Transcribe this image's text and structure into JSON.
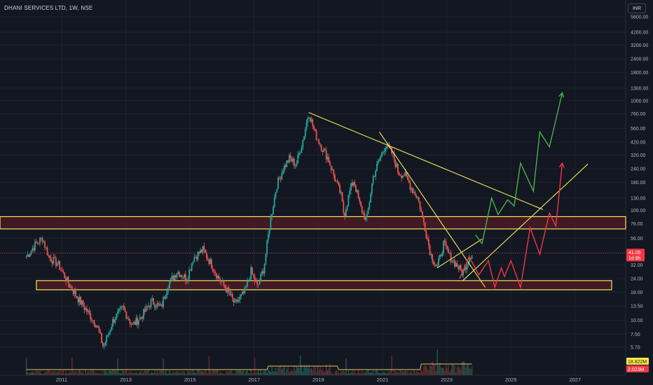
{
  "header": {
    "title": "DHANI SERVICES LTD, 1W, NSE",
    "currency": "INR"
  },
  "colors": {
    "up": "#26a69a",
    "down": "#ef5350",
    "line": "#f2e95a",
    "zone_fill": "#4a1a26",
    "green_path": "#4caf50",
    "red_path": "#f23645",
    "bg": "#131722"
  },
  "chart_data": {
    "type": "candlestick",
    "symbol": "DHANI SERVICES LTD",
    "interval": "1W",
    "exchange": "NSE",
    "scale": "log",
    "y_ticks": [
      5800,
      4200,
      3200,
      2400,
      1800,
      1300,
      1000,
      760,
      560,
      420,
      320,
      240,
      180,
      130,
      100,
      76,
      56,
      41.05,
      32,
      24,
      18,
      13.5,
      10,
      7.5,
      5.7
    ],
    "y_tick_labels": [
      "5800.00",
      "4200.00",
      "3200.00",
      "2400.00",
      "1800.00",
      "1300.00",
      "1000.00",
      "760.00",
      "560.00",
      "420.00",
      "320.00",
      "240.00",
      "180.00",
      "130.00",
      "100.00",
      "76.00",
      "56.00",
      "",
      "32.00",
      "24.00",
      "18.00",
      "13.50",
      "10.00",
      "7.50",
      "5.70"
    ],
    "x_ticks": [
      "2011",
      "2013",
      "2015",
      "2017",
      "2019",
      "2021",
      "2023",
      "2025",
      "2027"
    ],
    "last_price": {
      "value": "41.05",
      "countdown": "1d 8h"
    },
    "volume": {
      "value_1": "18.822M",
      "value_2": "2.023M"
    },
    "price_path": [
      [
        2009.9,
        38
      ],
      [
        2010.2,
        50
      ],
      [
        2010.4,
        56
      ],
      [
        2010.6,
        38
      ],
      [
        2010.9,
        32
      ],
      [
        2011.2,
        22
      ],
      [
        2011.5,
        16
      ],
      [
        2011.8,
        12
      ],
      [
        2012.1,
        9
      ],
      [
        2012.3,
        5.7
      ],
      [
        2012.6,
        10
      ],
      [
        2012.9,
        13
      ],
      [
        2013.2,
        9
      ],
      [
        2013.5,
        11
      ],
      [
        2013.8,
        15
      ],
      [
        2014.1,
        13
      ],
      [
        2014.3,
        21
      ],
      [
        2014.6,
        28
      ],
      [
        2014.9,
        24
      ],
      [
        2015.1,
        37
      ],
      [
        2015.4,
        44
      ],
      [
        2015.6,
        35
      ],
      [
        2015.9,
        24
      ],
      [
        2016.2,
        18
      ],
      [
        2016.4,
        14
      ],
      [
        2016.7,
        18
      ],
      [
        2016.9,
        28
      ],
      [
        2017.1,
        20
      ],
      [
        2017.3,
        30
      ],
      [
        2017.5,
        80
      ],
      [
        2017.7,
        170
      ],
      [
        2017.9,
        240
      ],
      [
        2018.1,
        300
      ],
      [
        2018.3,
        260
      ],
      [
        2018.5,
        420
      ],
      [
        2018.7,
        780
      ],
      [
        2018.9,
        500
      ],
      [
        2019.1,
        380
      ],
      [
        2019.3,
        300
      ],
      [
        2019.5,
        200
      ],
      [
        2019.7,
        140
      ],
      [
        2019.8,
        90
      ],
      [
        2020.0,
        160
      ],
      [
        2020.1,
        190
      ],
      [
        2020.3,
        110
      ],
      [
        2020.5,
        80
      ],
      [
        2020.7,
        200
      ],
      [
        2020.9,
        290
      ],
      [
        2021.1,
        400
      ],
      [
        2021.3,
        330
      ],
      [
        2021.5,
        220
      ],
      [
        2021.7,
        210
      ],
      [
        2021.9,
        160
      ],
      [
        2022.1,
        130
      ],
      [
        2022.3,
        75
      ],
      [
        2022.5,
        40
      ],
      [
        2022.7,
        30
      ],
      [
        2022.9,
        50
      ],
      [
        2023.1,
        38
      ],
      [
        2023.3,
        32
      ],
      [
        2023.5,
        27
      ],
      [
        2023.7,
        38
      ],
      [
        2023.8,
        41.05
      ]
    ],
    "zones": [
      {
        "y_top": 88,
        "y_bottom": 68
      },
      {
        "y_top": 23,
        "y_bottom": 19
      }
    ],
    "trendlines": [
      {
        "x1": 2018.7,
        "y1": 780,
        "x2": 2026.0,
        "y2": 102
      },
      {
        "x1": 2020.9,
        "y1": 520,
        "x2": 2024.2,
        "y2": 20
      },
      {
        "x1": 2022.7,
        "y1": 30,
        "x2": 2024.1,
        "y2": 55
      },
      {
        "x1": 2023.5,
        "y1": 23,
        "x2": 2027.4,
        "y2": 265
      }
    ],
    "green_projection": [
      [
        2023.9,
        60
      ],
      [
        2024.1,
        50
      ],
      [
        2024.4,
        130
      ],
      [
        2024.6,
        92
      ],
      [
        2024.9,
        125
      ],
      [
        2025.1,
        110
      ],
      [
        2025.3,
        270
      ],
      [
        2025.7,
        150
      ],
      [
        2025.9,
        520
      ],
      [
        2026.2,
        380
      ],
      [
        2026.6,
        1180
      ]
    ],
    "red_projection": [
      [
        2023.4,
        24
      ],
      [
        2023.7,
        38
      ],
      [
        2024.0,
        26
      ],
      [
        2024.3,
        35
      ],
      [
        2024.5,
        20
      ],
      [
        2024.7,
        30
      ],
      [
        2024.8,
        25
      ],
      [
        2025.0,
        35
      ],
      [
        2025.3,
        20
      ],
      [
        2025.6,
        70
      ],
      [
        2025.9,
        40
      ],
      [
        2026.2,
        95
      ],
      [
        2026.4,
        72
      ],
      [
        2026.6,
        270
      ]
    ]
  }
}
